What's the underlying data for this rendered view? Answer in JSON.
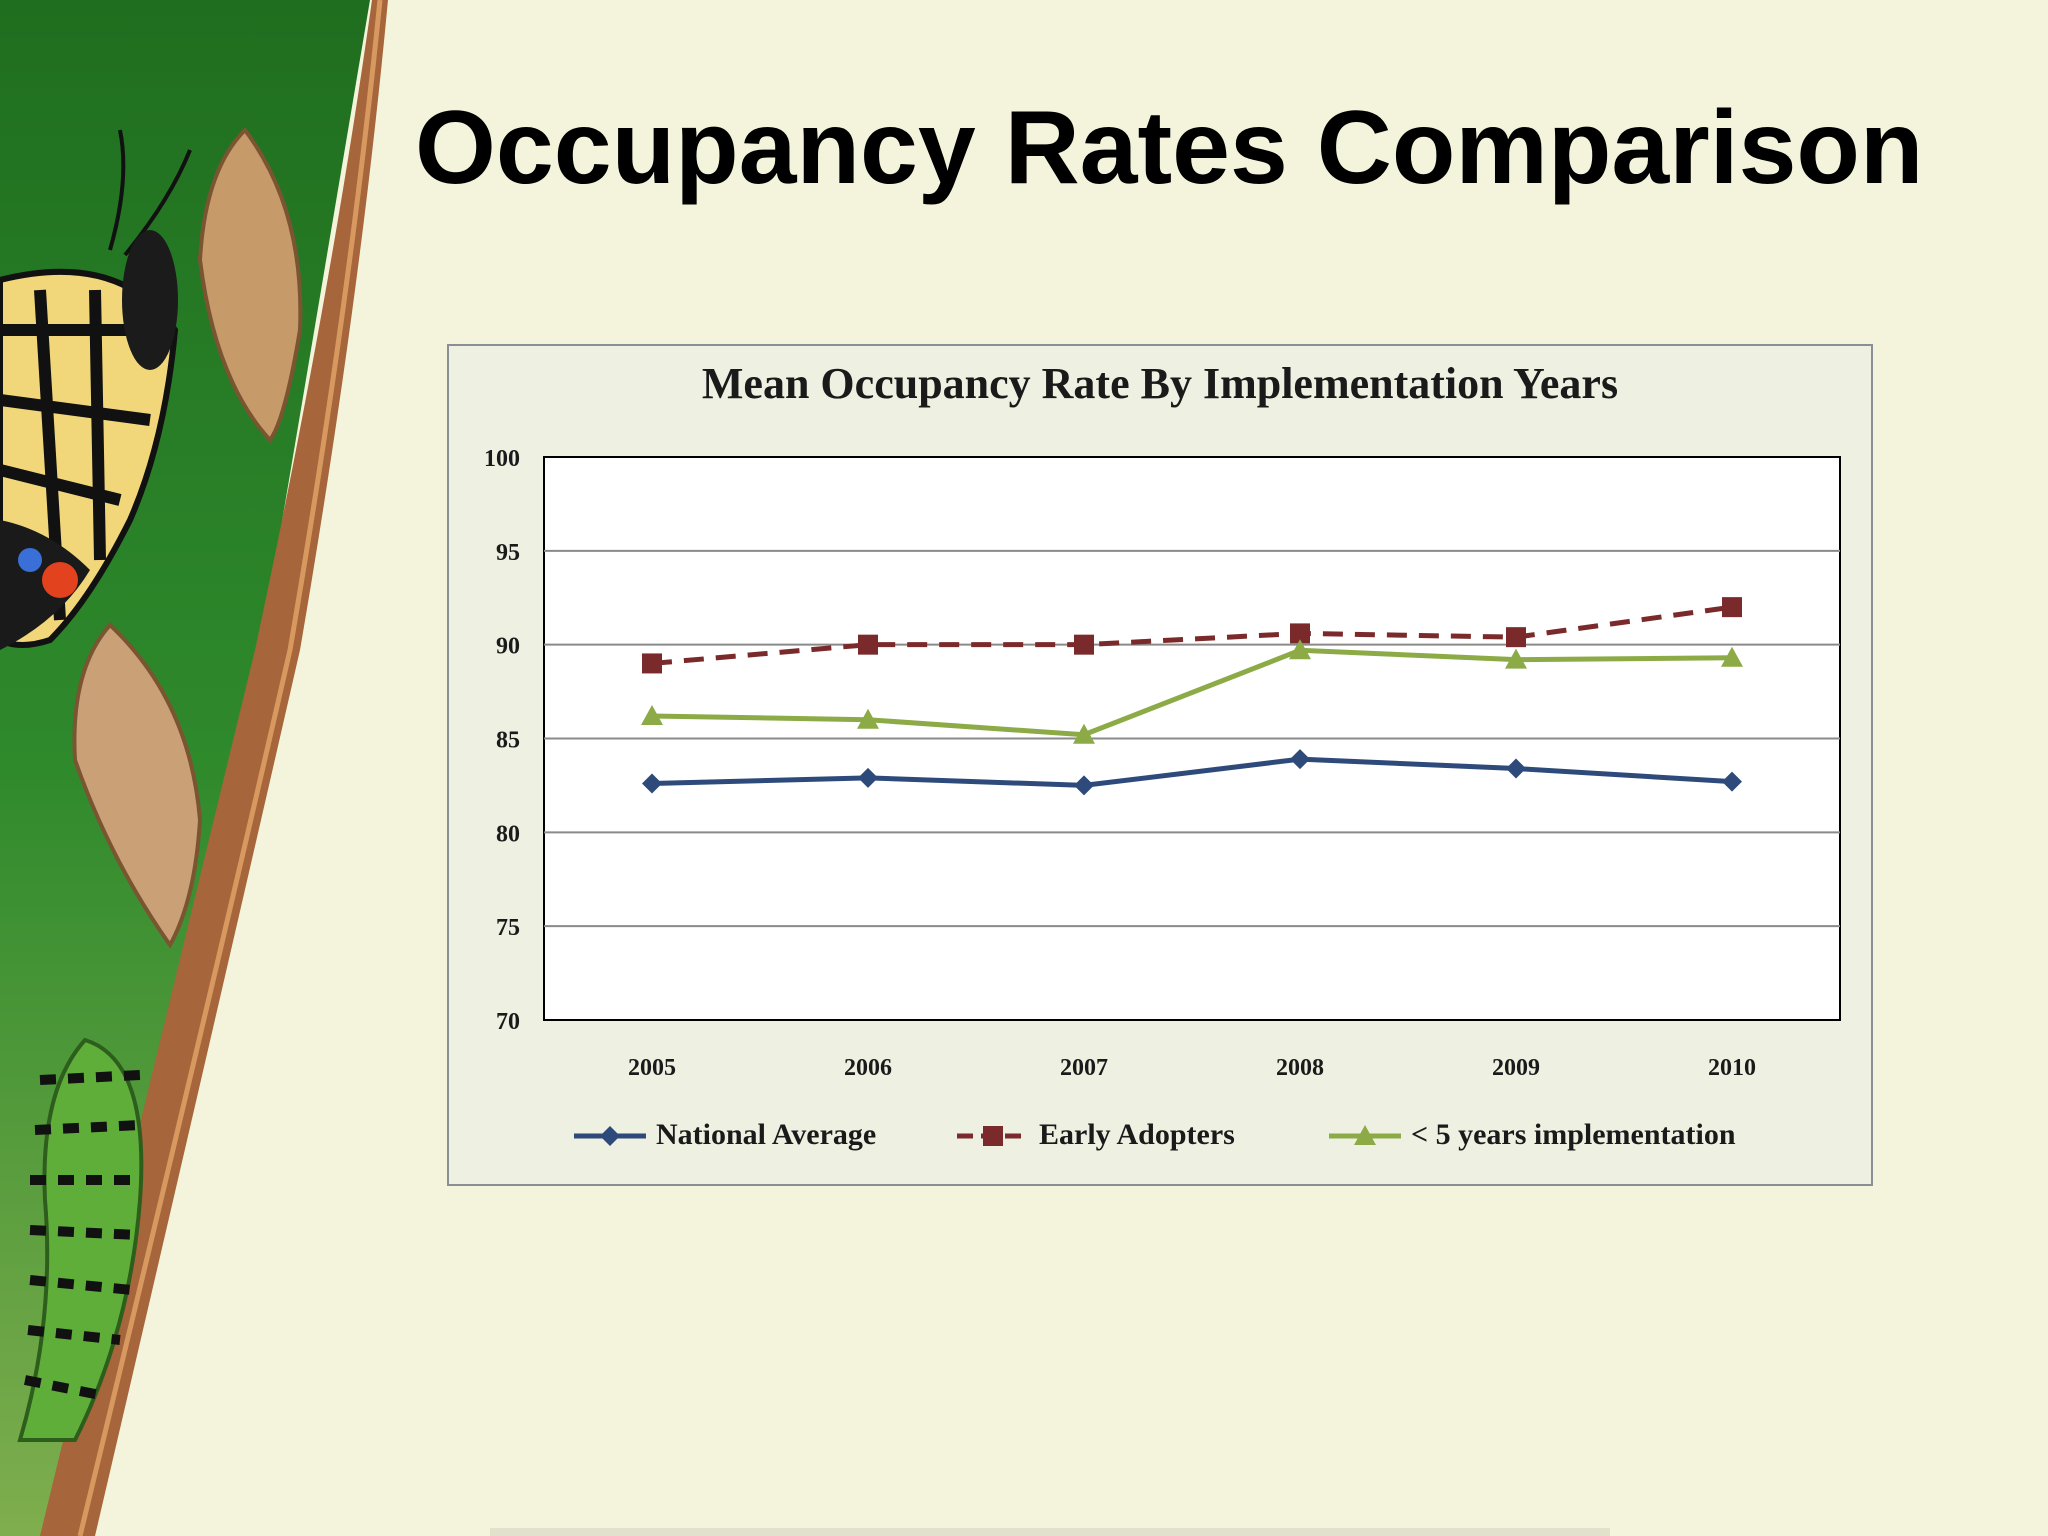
{
  "slide": {
    "title": "Occupancy Rates Comparison"
  },
  "colors": {
    "background": "#f4f4dc",
    "national": "#2e4a7a",
    "early": "#7a2a2a",
    "recent": "#8cab47",
    "frame": "#eef0e2"
  },
  "chart_data": {
    "type": "line",
    "title": "Mean Occupancy Rate By Implementation Years",
    "xlabel": "",
    "ylabel": "",
    "categories": [
      "2005",
      "2006",
      "2007",
      "2008",
      "2009",
      "2010"
    ],
    "ylim": [
      70,
      100
    ],
    "yticks": [
      "70",
      "75",
      "80",
      "85",
      "90",
      "95",
      "100"
    ],
    "grid": true,
    "legend": "bottom",
    "series": [
      {
        "name": "National Average",
        "values": [
          82.6,
          82.9,
          82.5,
          83.9,
          83.4,
          82.7
        ],
        "color": "#2e4a7a",
        "marker": "diamond",
        "dash": "solid"
      },
      {
        "name": "Early Adopters",
        "values": [
          89.0,
          90.0,
          90.0,
          90.6,
          90.4,
          92.0
        ],
        "color": "#7a2a2a",
        "marker": "square",
        "dash": "dashed"
      },
      {
        "name": "< 5 years implementation",
        "values": [
          86.2,
          86.0,
          85.2,
          89.7,
          89.2,
          89.3
        ],
        "color": "#8cab47",
        "marker": "triangle",
        "dash": "solid"
      }
    ]
  }
}
